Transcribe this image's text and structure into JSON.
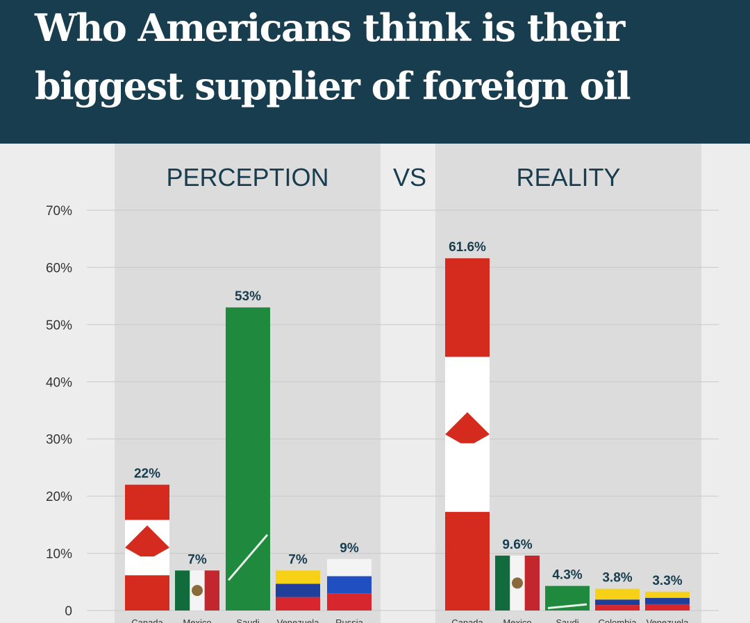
{
  "title_line1": "Who Americans think is their",
  "title_line2": "biggest supplier of foreign oil",
  "chart_data": {
    "type": "bar",
    "title": "Who Americans think is their biggest supplier of foreign oil",
    "ylim": [
      0,
      70
    ],
    "yticks": [
      {
        "v": 0,
        "label": "0"
      },
      {
        "v": 10,
        "label": "10%"
      },
      {
        "v": 20,
        "label": "20%"
      },
      {
        "v": 30,
        "label": "30%"
      },
      {
        "v": 40,
        "label": "40%"
      },
      {
        "v": 50,
        "label": "50%"
      },
      {
        "v": 60,
        "label": "60%"
      },
      {
        "v": 70,
        "label": "70%"
      }
    ],
    "vs_label": "VS",
    "panels": [
      {
        "name": "PERCEPTION",
        "categories": [
          "Canada",
          "Mexico",
          "Saudi",
          "Venezuela",
          "Russia"
        ],
        "values": [
          22,
          7,
          53,
          7,
          9
        ],
        "labels": [
          "22%",
          "7%",
          "53%",
          "7%",
          "9%"
        ]
      },
      {
        "name": "REALITY",
        "categories": [
          "Canada",
          "Mexico",
          "Saudi",
          "Colombia",
          "Venezuela"
        ],
        "values": [
          61.6,
          9.6,
          4.3,
          3.8,
          3.3
        ],
        "labels": [
          "61.6%",
          "9.6%",
          "4.3%",
          "3.8%",
          "3.3%"
        ]
      }
    ],
    "colors": {
      "header": "#173d4e",
      "panel": "#dcdcdc",
      "grid": "#c8c8c8",
      "label": "#173d4e"
    }
  }
}
